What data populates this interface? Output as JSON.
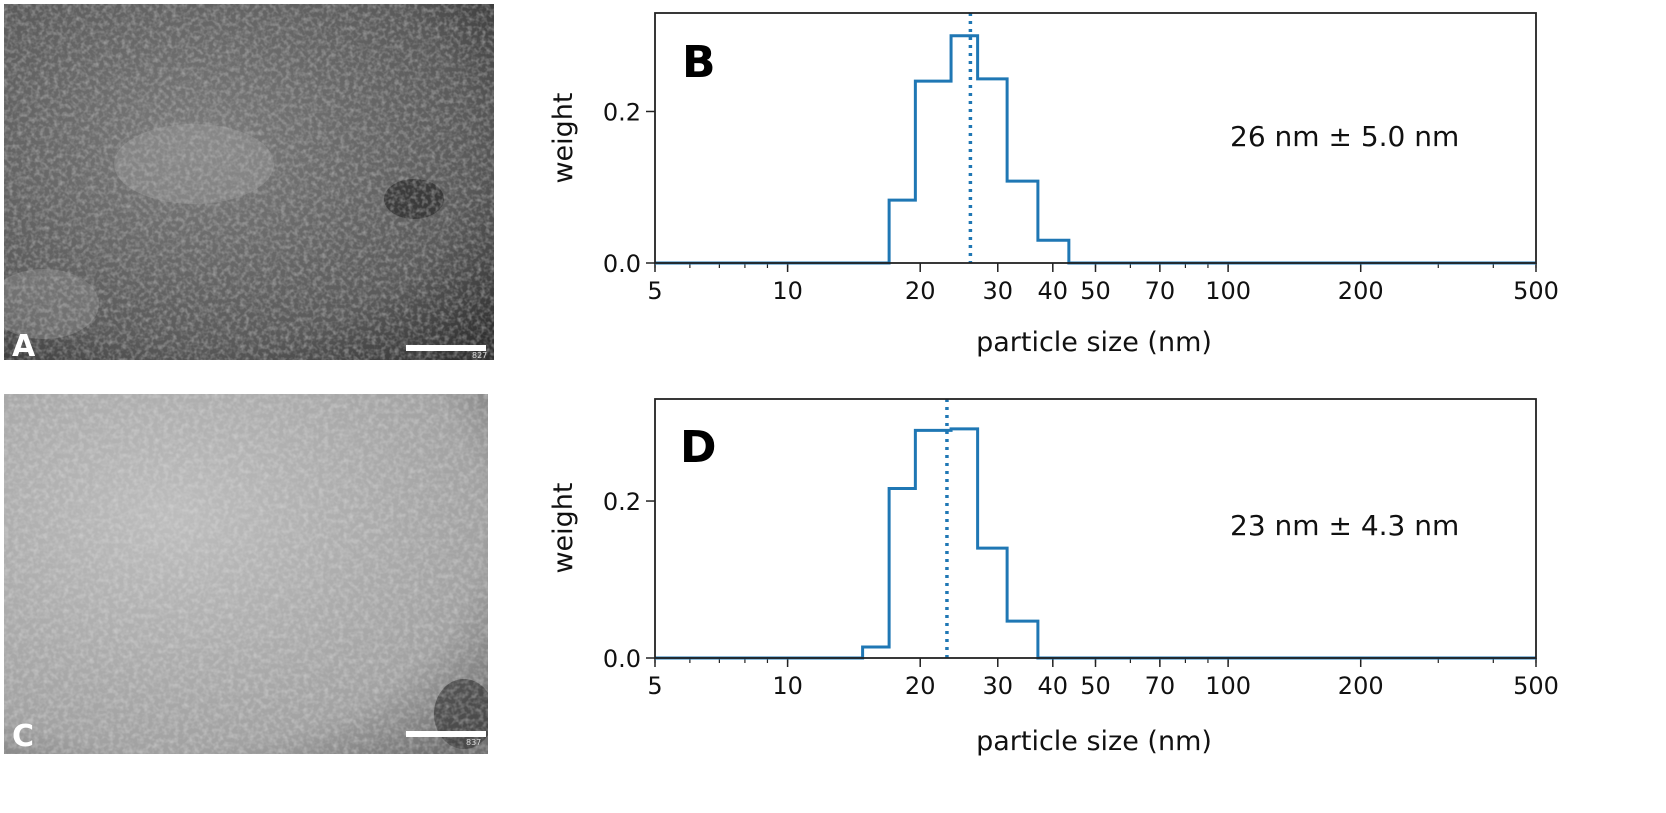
{
  "images": [
    {
      "letter": "A",
      "scale_label": "827"
    },
    {
      "letter": "C",
      "scale_label": "837"
    }
  ],
  "chart_data": [
    {
      "type": "histogram",
      "panel": "B",
      "xlabel": "particle size (nm)",
      "ylabel": "weight",
      "xscale": "log",
      "xlim": [
        5,
        500
      ],
      "ylim": [
        0,
        0.33
      ],
      "xticks": [
        5,
        10,
        20,
        30,
        40,
        50,
        70,
        100,
        200,
        500
      ],
      "yticks": [
        0.0,
        0.2
      ],
      "annotation": "26 nm ± 5.0 nm",
      "mean": 26,
      "color": "#1f77b4",
      "bins": [
        {
          "x0": 5,
          "x1": 17,
          "value": 0.0
        },
        {
          "x0": 17,
          "x1": 19.5,
          "value": 0.083
        },
        {
          "x0": 19.5,
          "x1": 23.5,
          "value": 0.24
        },
        {
          "x0": 23.5,
          "x1": 27,
          "value": 0.3
        },
        {
          "x0": 27,
          "x1": 31.5,
          "value": 0.243
        },
        {
          "x0": 31.5,
          "x1": 37,
          "value": 0.108
        },
        {
          "x0": 37,
          "x1": 43.5,
          "value": 0.03
        },
        {
          "x0": 43.5,
          "x1": 500,
          "value": 0.0
        }
      ]
    },
    {
      "type": "histogram",
      "panel": "D",
      "xlabel": "particle size (nm)",
      "ylabel": "weight",
      "xscale": "log",
      "xlim": [
        5,
        500
      ],
      "ylim": [
        0,
        0.33
      ],
      "xticks": [
        5,
        10,
        20,
        30,
        40,
        50,
        70,
        100,
        200,
        500
      ],
      "yticks": [
        0.0,
        0.2
      ],
      "annotation": "23 nm ± 4.3 nm",
      "mean": 23,
      "color": "#1f77b4",
      "bins": [
        {
          "x0": 5,
          "x1": 14.8,
          "value": 0.0
        },
        {
          "x0": 14.8,
          "x1": 17,
          "value": 0.014
        },
        {
          "x0": 17,
          "x1": 19.5,
          "value": 0.216
        },
        {
          "x0": 19.5,
          "x1": 23.5,
          "value": 0.29
        },
        {
          "x0": 23.5,
          "x1": 27,
          "value": 0.292
        },
        {
          "x0": 27,
          "x1": 31.5,
          "value": 0.14
        },
        {
          "x0": 31.5,
          "x1": 37,
          "value": 0.047
        },
        {
          "x0": 37,
          "x1": 500,
          "value": 0.0
        }
      ]
    }
  ]
}
